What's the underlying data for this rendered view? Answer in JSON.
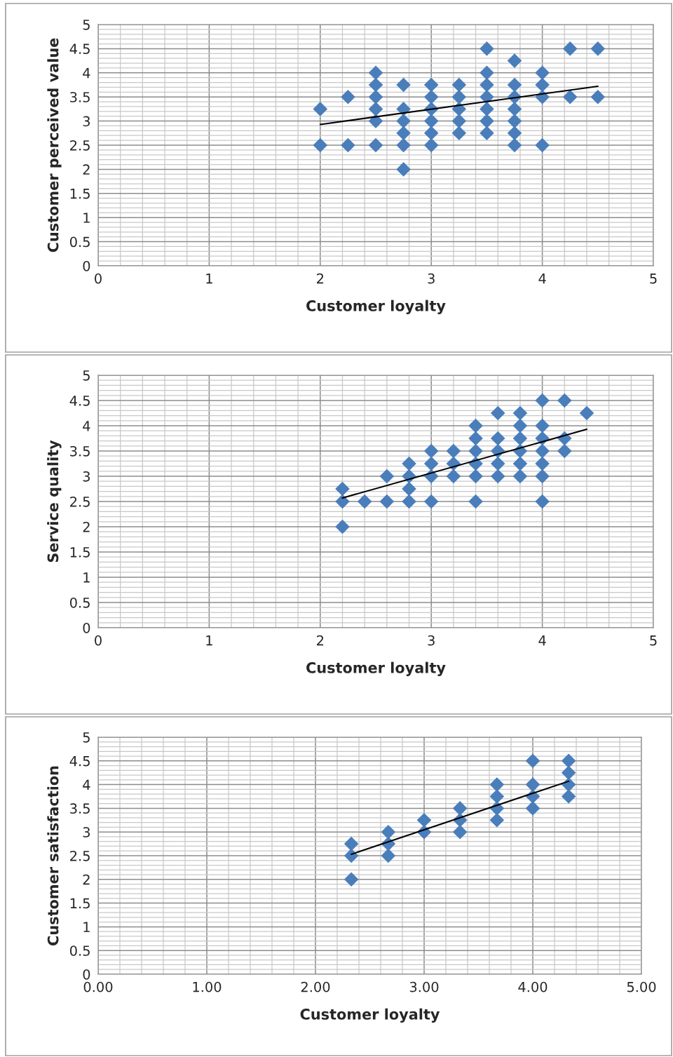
{
  "chart_data": [
    {
      "type": "scatter",
      "xlabel": "Customer loyalty",
      "ylabel": "Customer perceived value",
      "xlim": [
        0,
        5
      ],
      "ylim": [
        0,
        5
      ],
      "xticks": [
        0,
        1,
        2,
        3,
        4,
        5
      ],
      "yticks": [
        0,
        0.5,
        1,
        1.5,
        2,
        2.5,
        3,
        3.5,
        4,
        4.5,
        5
      ],
      "grid": true,
      "series": [
        {
          "marker": "diamond",
          "color": "#4a7ebb",
          "x": [
            2,
            2,
            2.25,
            2.25,
            2.5,
            2.5,
            2.5,
            2.5,
            2.5,
            2.5,
            2.75,
            2.75,
            2.75,
            2.75,
            2.75,
            2.75,
            3,
            3,
            3,
            3,
            3,
            3,
            3.25,
            3.25,
            3.25,
            3.25,
            3.25,
            3.5,
            3.5,
            3.5,
            3.5,
            3.5,
            3.5,
            3.5,
            3.75,
            3.75,
            3.75,
            3.75,
            3.75,
            3.75,
            3.75,
            4,
            4,
            4,
            4,
            4.25,
            4.25,
            4.5,
            4.5
          ],
          "values": [
            3.25,
            2.5,
            3.5,
            2.5,
            4,
            3.75,
            3.5,
            3.25,
            3,
            2.5,
            3.75,
            3.25,
            3,
            2.75,
            2.5,
            2,
            3.75,
            3.5,
            3.25,
            3,
            2.75,
            2.5,
            3.75,
            3.5,
            3.25,
            3,
            2.75,
            4.5,
            4,
            3.75,
            3.5,
            3.25,
            3,
            2.75,
            4.25,
            3.75,
            3.5,
            3.25,
            3,
            2.75,
            2.5,
            4,
            3.75,
            3.5,
            2.5,
            4.5,
            3.5,
            4.5,
            3.5
          ]
        },
        {
          "type": "line",
          "marker": "none",
          "color": "#000000",
          "x": [
            2,
            4.5
          ],
          "values": [
            2.93,
            3.72
          ]
        }
      ]
    },
    {
      "type": "scatter",
      "xlabel": "Customer loyalty",
      "ylabel": "Service quality",
      "xlim": [
        0,
        5
      ],
      "ylim": [
        0,
        5
      ],
      "xticks": [
        0,
        1,
        2,
        3,
        4,
        5
      ],
      "yticks": [
        0,
        0.5,
        1,
        1.5,
        2,
        2.5,
        3,
        3.5,
        4,
        4.5,
        5
      ],
      "grid": true,
      "series": [
        {
          "marker": "diamond",
          "color": "#4a7ebb",
          "x": [
            2.2,
            2.2,
            2.2,
            2.4,
            2.6,
            2.6,
            2.8,
            2.8,
            2.8,
            2.8,
            3.0,
            3.0,
            3.0,
            3.0,
            3.2,
            3.2,
            3.2,
            3.4,
            3.4,
            3.4,
            3.4,
            3.4,
            3.4,
            3.6,
            3.6,
            3.6,
            3.6,
            3.6,
            3.8,
            3.8,
            3.8,
            3.8,
            3.8,
            3.8,
            4.0,
            4.0,
            4.0,
            4.0,
            4.0,
            4.0,
            4.0,
            4.2,
            4.2,
            4.2,
            4.4
          ],
          "values": [
            2.75,
            2.5,
            2,
            2.5,
            3,
            2.5,
            3.25,
            3,
            2.75,
            2.5,
            3.5,
            3.25,
            3,
            2.5,
            3.5,
            3.25,
            3,
            4,
            3.75,
            3.5,
            3.25,
            3,
            2.5,
            4.25,
            3.75,
            3.5,
            3.25,
            3,
            4.25,
            4,
            3.75,
            3.5,
            3.25,
            3,
            4.5,
            4,
            3.75,
            3.5,
            3.25,
            3,
            2.5,
            4.5,
            3.75,
            3.5,
            4.25
          ]
        },
        {
          "type": "line",
          "marker": "none",
          "color": "#000000",
          "x": [
            2.2,
            4.4
          ],
          "values": [
            2.57,
            3.93
          ]
        }
      ]
    },
    {
      "type": "scatter",
      "xlabel": "Customer loyalty",
      "ylabel": "Customer satisfaction",
      "xlim": [
        0,
        5
      ],
      "ylim": [
        0,
        5
      ],
      "xticks": [
        {
          "value": 0,
          "label": "0.00"
        },
        {
          "value": 1,
          "label": "1.00"
        },
        {
          "value": 2,
          "label": "2.00"
        },
        {
          "value": 3,
          "label": "3.00"
        },
        {
          "value": 4,
          "label": "4.00"
        },
        {
          "value": 5,
          "label": "5.00"
        }
      ],
      "yticks": [
        0,
        0.5,
        1,
        1.5,
        2,
        2.5,
        3,
        3.5,
        4,
        4.5,
        5
      ],
      "grid": true,
      "series": [
        {
          "marker": "diamond",
          "color": "#4a7ebb",
          "x": [
            2.33,
            2.33,
            2.33,
            2.67,
            2.67,
            2.67,
            3,
            3,
            3.33,
            3.33,
            3.33,
            3.67,
            3.67,
            3.67,
            3.67,
            4,
            4,
            4,
            4,
            4.33,
            4.33,
            4.33,
            4.33
          ],
          "values": [
            2.75,
            2.5,
            2,
            3,
            2.75,
            2.5,
            3.25,
            3,
            3.5,
            3.25,
            3,
            4,
            3.75,
            3.5,
            3.25,
            4.5,
            4,
            3.75,
            3.5,
            4.5,
            4.25,
            4,
            3.75
          ]
        },
        {
          "type": "line",
          "marker": "none",
          "color": "#000000",
          "x": [
            2.33,
            4.33
          ],
          "values": [
            2.53,
            4.07
          ]
        }
      ]
    }
  ]
}
